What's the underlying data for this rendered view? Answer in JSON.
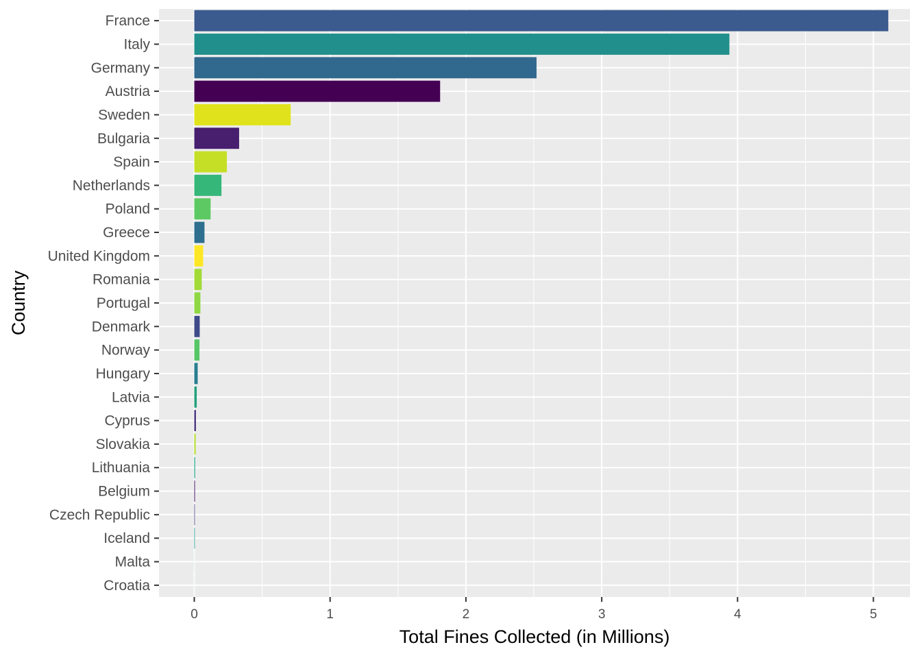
{
  "chart_data": {
    "type": "bar",
    "orientation": "horizontal",
    "title": "",
    "xlabel": "Total Fines Collected (in Millions)",
    "ylabel": "Country",
    "xlim": [
      -0.26,
      5.27
    ],
    "x_ticks": [
      0,
      1,
      2,
      3,
      4,
      5
    ],
    "x_tick_labels": [
      "0",
      "1",
      "2",
      "3",
      "4",
      "5"
    ],
    "grid": true,
    "legend": "none",
    "categories": [
      "France",
      "Italy",
      "Germany",
      "Austria",
      "Sweden",
      "Bulgaria",
      "Spain",
      "Netherlands",
      "Poland",
      "Greece",
      "United Kingdom",
      "Romania",
      "Portugal",
      "Denmark",
      "Norway",
      "Hungary",
      "Latvia",
      "Cyprus",
      "Slovakia",
      "Lithuania",
      "Belgium",
      "Czech Republic",
      "Iceland",
      "Malta",
      "Croatia"
    ],
    "values": [
      5.11,
      3.94,
      2.52,
      1.81,
      0.71,
      0.33,
      0.24,
      0.2,
      0.12,
      0.075,
      0.065,
      0.055,
      0.045,
      0.04,
      0.038,
      0.025,
      0.018,
      0.012,
      0.01,
      0.006,
      0.005,
      0.004,
      0.004,
      0.0005,
      0.0003
    ],
    "colors": [
      "#3B5A8E",
      "#21908C",
      "#31688E",
      "#440154",
      "#E0E31B",
      "#471F6E",
      "#C5DF27",
      "#35B779",
      "#5DC963",
      "#2E6E8E",
      "#FDE725",
      "#A2DA37",
      "#8FD744",
      "#3E4A89",
      "#56C667",
      "#287D8E",
      "#23A07C",
      "#46327E",
      "#B5DE2B",
      "#20A486",
      "#481769",
      "#433E85",
      "#1F9A8A",
      "#2BB07F",
      "#27808E"
    ]
  }
}
